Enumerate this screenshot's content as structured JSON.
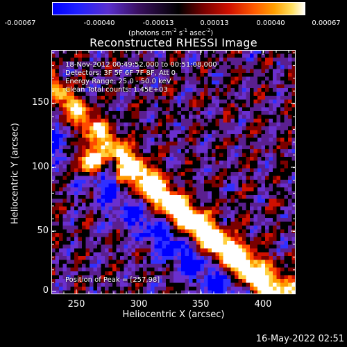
{
  "colorbar": {
    "ticks": [
      "-0.00067",
      "-0.00040",
      "-0.00013",
      "0.00013",
      "0.00040",
      "0.00067"
    ],
    "units_prefix": "(photons cm",
    "units_exp1": "-2",
    "units_mid": " s",
    "units_exp2": "-1",
    "units_mid2": " asec",
    "units_exp3": "-2",
    "units_suffix": ")"
  },
  "title": "Reconstructed RHESSI Image",
  "annotations": {
    "time": "18-Nov-2012 00:49:52.000 to 00:51:08.000",
    "detectors": "Detectors: 3F 5F 6F 7F 8F, Att 0",
    "energy": "Energy Range: 25.0 - 50.0 keV",
    "clean": "Clean    Total counts: 1.45E+03",
    "peak": "Position of Peak = [257,98]"
  },
  "axes": {
    "xlabel": "Heliocentric X (arcsec)",
    "ylabel": "Heliocentric Y (arcsec)",
    "xticks": [
      "250",
      "300",
      "350",
      "400"
    ],
    "yticks": [
      "150",
      "100",
      "50",
      "0"
    ]
  },
  "footer": {
    "timestamp": "16-May-2022 02:51"
  },
  "image": {
    "colormap": [
      "#0000ff",
      "#3030ff",
      "#6a2fcf",
      "#5a1f8f",
      "#000000",
      "#7a0000",
      "#d01000",
      "#ff4a00",
      "#ff9a00",
      "#ffd040",
      "#ffffff"
    ]
  }
}
